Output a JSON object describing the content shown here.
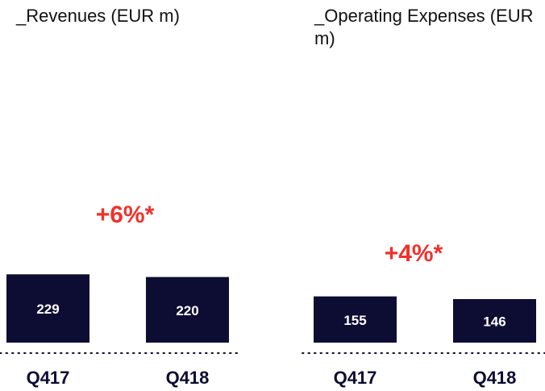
{
  "chart_data": [
    {
      "type": "bar",
      "title": "_Revenues (EUR m)",
      "categories": [
        "Q417",
        "Q418"
      ],
      "values": [
        229,
        220
      ],
      "annotation": "+6%*",
      "color": "#0d0d33",
      "ylim": [
        0,
        1000
      ]
    },
    {
      "type": "bar",
      "title": "_Operating Expenses (EUR m)",
      "categories": [
        "Q417",
        "Q418"
      ],
      "values": [
        155,
        146
      ],
      "annotation": "+4%*",
      "color": "#0d0d33",
      "ylim": [
        0,
        1000
      ]
    }
  ]
}
